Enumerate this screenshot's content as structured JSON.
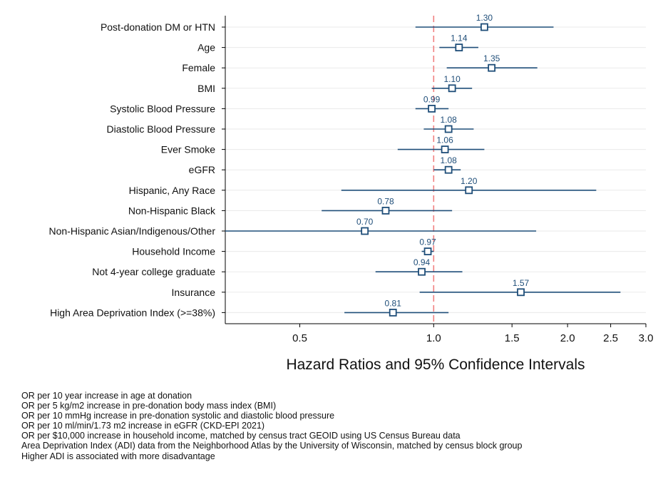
{
  "chart_data": {
    "type": "scatter",
    "subtype": "forest-plot",
    "xscale": "log",
    "xlim": [
      0.34,
      3.0
    ],
    "x_ticks": [
      0.5,
      1.0,
      1.5,
      2.0,
      2.5,
      3.0
    ],
    "x_tick_labels": [
      "0.5",
      "1.0",
      "1.5",
      "2.0",
      "2.5",
      "3.0"
    ],
    "xlabel": "Hazard Ratios and 95% Confidence Intervals",
    "reference_line": {
      "x": 1.0,
      "style": "dashed",
      "color": "#f08080"
    },
    "grid": true,
    "colors": {
      "marker": "#1f4e79",
      "ci": "#1f4e79",
      "grid": "#eaeaea"
    },
    "rows": [
      {
        "label": "Post-donation DM or HTN",
        "hr": 1.3,
        "lo": 0.91,
        "hi": 1.86,
        "label_text": "1.30"
      },
      {
        "label": "Age",
        "hr": 1.14,
        "lo": 1.03,
        "hi": 1.26,
        "label_text": "1.14"
      },
      {
        "label": "Female",
        "hr": 1.35,
        "lo": 1.07,
        "hi": 1.71,
        "label_text": "1.35"
      },
      {
        "label": "BMI",
        "hr": 1.1,
        "lo": 0.99,
        "hi": 1.22,
        "label_text": "1.10"
      },
      {
        "label": "Systolic Blood Pressure",
        "hr": 0.99,
        "lo": 0.91,
        "hi": 1.08,
        "label_text": "0.99"
      },
      {
        "label": "Diastolic Blood Pressure",
        "hr": 1.08,
        "lo": 0.95,
        "hi": 1.23,
        "label_text": "1.08"
      },
      {
        "label": "Ever Smoke",
        "hr": 1.06,
        "lo": 0.83,
        "hi": 1.3,
        "label_text": "1.06"
      },
      {
        "label": "eGFR",
        "hr": 1.08,
        "lo": 1.0,
        "hi": 1.15,
        "label_text": "1.08"
      },
      {
        "label": "Hispanic, Any Race",
        "hr": 1.2,
        "lo": 0.62,
        "hi": 2.32,
        "label_text": "1.20"
      },
      {
        "label": "Non-Hispanic Black",
        "hr": 0.78,
        "lo": 0.56,
        "hi": 1.1,
        "label_text": "0.78"
      },
      {
        "label": "Non-Hispanic Asian/Indigenous/Other",
        "hr": 0.7,
        "lo": 0.34,
        "hi": 1.7,
        "label_text": "0.70"
      },
      {
        "label": "Household Income",
        "hr": 0.97,
        "lo": 0.94,
        "hi": 1.0,
        "label_text": "0.97"
      },
      {
        "label": "Not 4-year college graduate",
        "hr": 0.94,
        "lo": 0.74,
        "hi": 1.16,
        "label_text": "0.94"
      },
      {
        "label": "Insurance",
        "hr": 1.57,
        "lo": 0.93,
        "hi": 2.63,
        "label_text": "1.57"
      },
      {
        "label": "High Area Deprivation Index (>=38%)",
        "hr": 0.81,
        "lo": 0.63,
        "hi": 1.08,
        "label_text": "0.81"
      }
    ]
  },
  "notes": [
    "OR per 10 year increase in age at donation",
    "OR per 5 kg/m2 increase in pre-donation body mass index (BMI)",
    "OR per 10 mmHg increase in pre-donation systolic and diastolic blood pressure",
    "OR per 10 ml/min/1.73 m2 increase in eGFR (CKD-EPI 2021)",
    "OR per $10,000 increase in household income, matched by census tract GEOID using US Census Bureau data",
    "Area Deprivation Index (ADI) data from the Neighborhood Atlas by the University of Wisconsin, matched by census block group",
    "Higher ADI is associated with more disadvantage"
  ]
}
